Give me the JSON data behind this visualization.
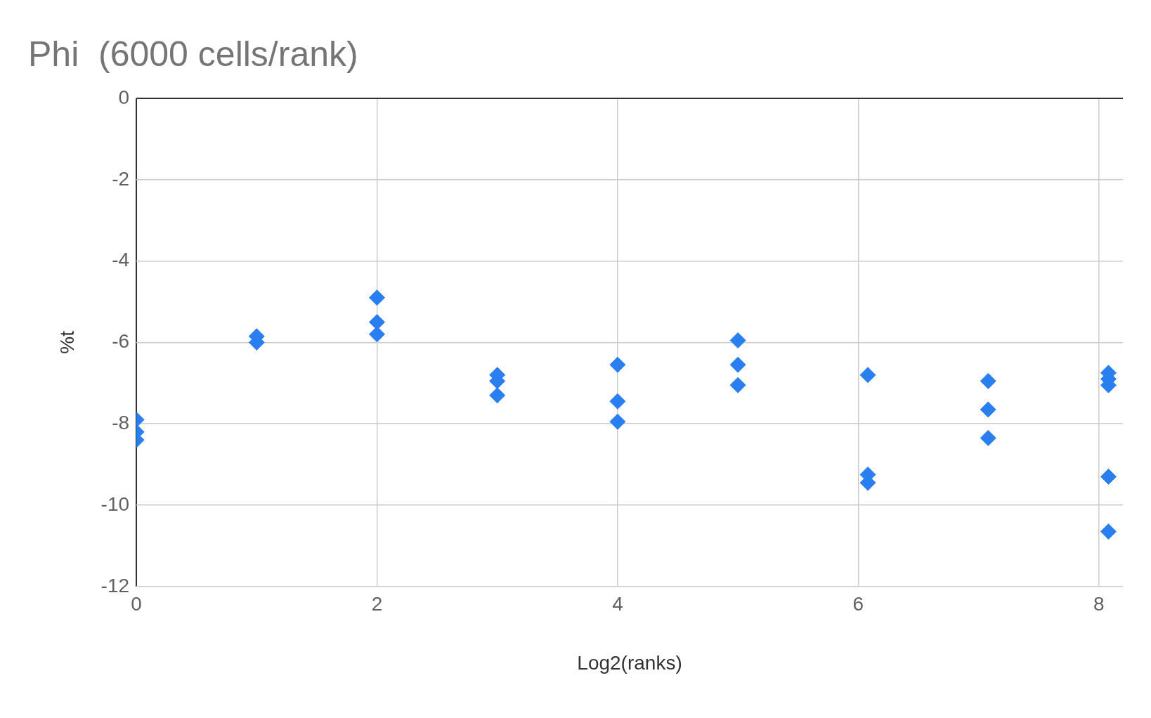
{
  "chart_data": {
    "type": "scatter",
    "title": "Phi  (6000 cells/rank)",
    "xlabel": "Log2(ranks)",
    "ylabel": "%t",
    "x": [
      0,
      0,
      0,
      1,
      1,
      2,
      2,
      2,
      3,
      3,
      3,
      4,
      4,
      4,
      5,
      5,
      5,
      6.08,
      6.08,
      6.08,
      7.08,
      7.08,
      7.08,
      8.08,
      8.08,
      8.08,
      8.08,
      8.08
    ],
    "values": [
      -7.9,
      -8.2,
      -8.4,
      -5.85,
      -6.0,
      -4.9,
      -5.5,
      -5.8,
      -6.8,
      -6.95,
      -7.3,
      -6.55,
      -7.45,
      -7.95,
      -5.95,
      -6.55,
      -7.05,
      -6.8,
      -9.25,
      -9.45,
      -6.95,
      -7.65,
      -8.35,
      -6.75,
      -6.9,
      -7.05,
      -9.3,
      -10.65
    ],
    "color": "#2a7ff0",
    "marker": "diamond",
    "grid": true,
    "legend": false,
    "xlim": [
      0,
      8.2
    ],
    "xticks": [
      0,
      2,
      4,
      6,
      8
    ],
    "ylim": [
      -12,
      0
    ],
    "yticks": [
      0,
      -2,
      -4,
      -6,
      -8,
      -10,
      -12
    ]
  }
}
